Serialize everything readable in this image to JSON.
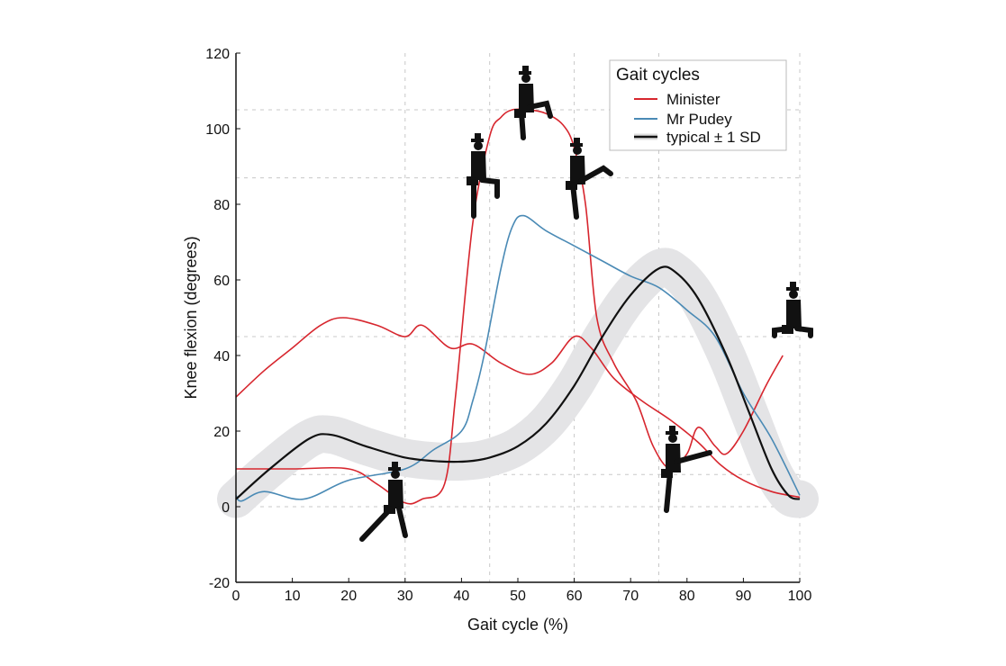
{
  "chart_data": {
    "type": "line",
    "xlabel": "Gait cycle (%)",
    "ylabel": "Knee flexion (degrees)",
    "xlim": [
      0,
      100
    ],
    "ylim": [
      -20,
      120
    ],
    "xticks": [
      0,
      10,
      20,
      30,
      40,
      50,
      60,
      70,
      80,
      90,
      100
    ],
    "yticks": [
      -20,
      0,
      20,
      40,
      60,
      80,
      100,
      120
    ],
    "grid": {
      "style": "dashed",
      "x": [
        30,
        45,
        60,
        75,
        100
      ],
      "y": [
        105,
        87,
        45,
        8.5,
        0
      ]
    },
    "legend": {
      "title": "Gait cycles",
      "placement": "top-right",
      "entries": [
        "Minister",
        "Mr Pudey",
        "typical ± 1 SD"
      ]
    },
    "series": [
      {
        "name": "Minister",
        "color": "#d7262e",
        "x": [
          0,
          5,
          10,
          15,
          19,
          25,
          30,
          33,
          38,
          42,
          47,
          52,
          56,
          60,
          63,
          67,
          72,
          77,
          82,
          86,
          90,
          95,
          100
        ],
        "y": [
          29,
          36,
          42,
          48,
          50,
          48,
          45,
          48,
          42,
          43,
          38,
          35,
          38,
          45,
          42,
          34,
          28,
          23,
          17,
          11,
          7,
          4,
          2.5
        ]
      },
      {
        "name": "Minister",
        "color": "#d7262e",
        "x": [
          0,
          10,
          20,
          25,
          30,
          33,
          37,
          39,
          42,
          45,
          47,
          49,
          52,
          55,
          58,
          60,
          62,
          64,
          67,
          71,
          74,
          77,
          80,
          82,
          85,
          87,
          90,
          94,
          97
        ],
        "y": [
          10,
          10,
          10,
          6,
          1,
          2,
          6,
          30,
          75,
          98,
          103,
          105,
          105,
          104,
          101,
          95,
          80,
          50,
          38,
          28,
          16,
          10,
          14,
          21,
          16,
          14,
          20,
          32,
          40
        ]
      },
      {
        "name": "Mr Pudey",
        "color": "#4a8ab5",
        "x": [
          0,
          1,
          5,
          12,
          20,
          30,
          35,
          40,
          42,
          44,
          47,
          49,
          51,
          55,
          60,
          65,
          70,
          75,
          80,
          85,
          90,
          95,
          100
        ],
        "y": [
          3,
          1.5,
          4,
          2,
          7,
          10,
          15,
          20,
          28,
          40,
          63,
          74,
          77,
          73,
          69,
          65,
          61,
          58,
          52,
          45,
          30,
          18,
          3
        ]
      },
      {
        "name": "typical ± 1 SD",
        "color": "#111111",
        "sd": 5,
        "x": [
          0,
          6,
          13,
          17,
          23,
          30,
          36,
          41,
          45,
          50,
          55,
          60,
          65,
          70,
          75,
          78,
          82,
          87,
          91,
          95,
          98,
          100
        ],
        "y": [
          2,
          10,
          18,
          19,
          16,
          13,
          12,
          12,
          13,
          16,
          22,
          32,
          45,
          56,
          63,
          62,
          55,
          40,
          25,
          10,
          3,
          2
        ]
      }
    ],
    "annotations": [
      "silly-walk-figure",
      "silly-walk-figure",
      "silly-walk-figure",
      "silly-walk-figure",
      "silly-walk-figure",
      "silly-walk-figure"
    ]
  }
}
